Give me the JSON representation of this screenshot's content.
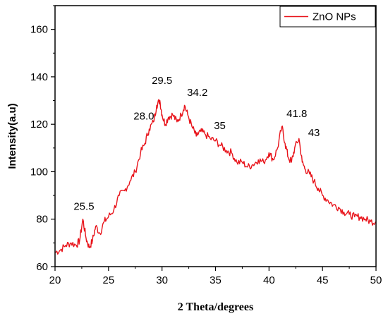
{
  "chart_data": {
    "type": "line",
    "title": "",
    "xlabel": "2 Theta/degrees",
    "ylabel": "Intensity(a.u)",
    "xlim": [
      20,
      50
    ],
    "ylim": [
      60,
      170
    ],
    "x_ticks": [
      20,
      25,
      30,
      35,
      40,
      45,
      50
    ],
    "y_ticks": [
      60,
      80,
      100,
      120,
      140,
      160
    ],
    "grid": false,
    "legend_position": "top-right",
    "series": [
      {
        "name": "ZnO NPs",
        "color": "#e8141b",
        "x": [
          20.0,
          20.5,
          21.0,
          21.5,
          22.0,
          22.3,
          22.6,
          22.9,
          23.2,
          23.5,
          23.8,
          24.2,
          24.6,
          25.0,
          25.5,
          26.0,
          26.5,
          27.0,
          27.5,
          28.0,
          28.4,
          28.8,
          29.2,
          29.5,
          29.8,
          30.0,
          30.3,
          30.6,
          31.0,
          31.4,
          31.8,
          32.1,
          32.4,
          32.8,
          33.2,
          33.6,
          34.0,
          34.5,
          35.0,
          35.5,
          36.0,
          36.5,
          37.0,
          37.5,
          38.0,
          38.5,
          39.0,
          39.5,
          40.0,
          40.4,
          40.8,
          41.2,
          41.5,
          41.8,
          42.1,
          42.4,
          42.8,
          43.1,
          43.4,
          43.8,
          44.2,
          44.6,
          45.0,
          45.5,
          46.0,
          46.5,
          47.0,
          47.5,
          48.0,
          48.5,
          49.0,
          49.5,
          50.0
        ],
        "values": [
          66,
          67,
          69,
          70,
          69,
          71,
          80,
          72,
          68,
          71,
          77,
          74,
          79,
          81,
          84,
          90,
          92,
          96,
          100,
          108,
          112,
          118,
          121,
          128,
          130,
          124,
          120,
          123,
          124,
          121,
          124,
          128,
          124,
          119,
          115,
          117,
          116,
          114,
          113,
          111,
          109,
          108,
          104,
          104,
          102,
          103,
          105,
          104,
          108,
          105,
          110,
          119,
          112,
          106,
          104,
          110,
          114,
          104,
          101,
          99,
          96,
          93,
          90,
          88,
          86,
          85,
          83,
          82,
          81,
          81,
          80,
          79,
          79
        ]
      }
    ],
    "annotations": [
      {
        "text": "25.5",
        "x": 22.7,
        "y": 84
      },
      {
        "text": "28.0",
        "x": 28.3,
        "y": 122
      },
      {
        "text": "29.5",
        "x": 30.0,
        "y": 137
      },
      {
        "text": "34.2",
        "x": 33.3,
        "y": 132
      },
      {
        "text": "35",
        "x": 35.4,
        "y": 118
      },
      {
        "text": "41.8",
        "x": 42.6,
        "y": 123
      },
      {
        "text": "43",
        "x": 44.2,
        "y": 115
      }
    ]
  }
}
